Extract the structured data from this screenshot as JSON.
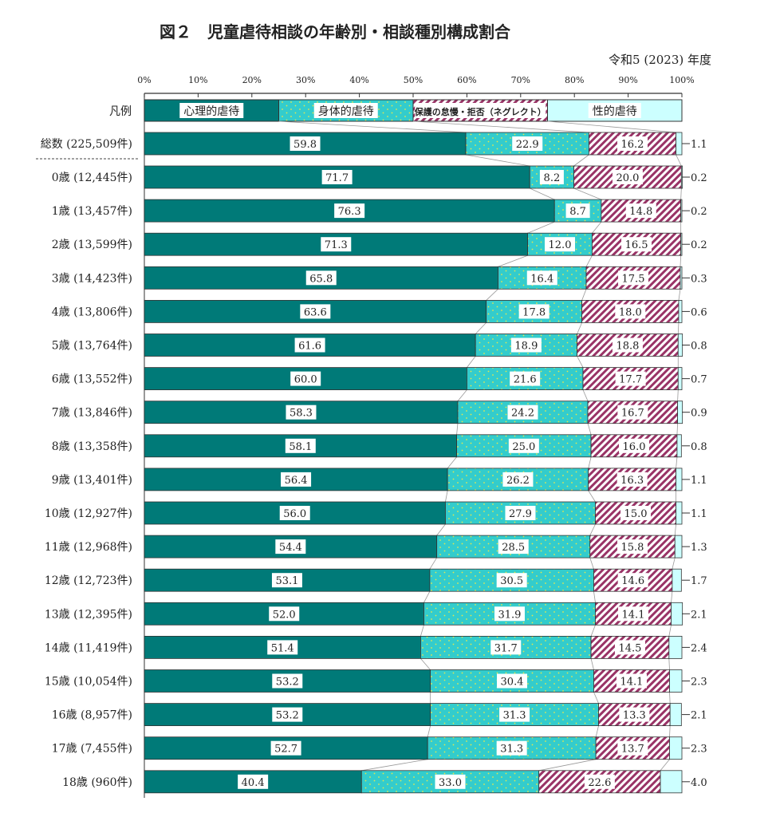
{
  "chart_data": {
    "type": "bar",
    "orientation": "horizontal-stacked-100",
    "title": "図２　児童虐待相談の年齢別・相談種別構成割合",
    "subtitle": "令和5 (2023) 年度",
    "legend_label": "凡例",
    "xlim": [
      0,
      100
    ],
    "x_ticks": [
      "0%",
      "10%",
      "20%",
      "30%",
      "40%",
      "50%",
      "60%",
      "70%",
      "80%",
      "90%",
      "100%"
    ],
    "series": [
      {
        "name": "心理的虐待",
        "color": "#007a78",
        "values": [
          59.8,
          71.7,
          76.3,
          71.3,
          65.8,
          63.6,
          61.6,
          60.0,
          58.3,
          58.1,
          56.4,
          56.0,
          54.4,
          53.1,
          52.0,
          51.4,
          53.2,
          53.2,
          52.7,
          40.4
        ]
      },
      {
        "name": "身体的虐待",
        "color": "#33cccc",
        "values": [
          22.9,
          8.2,
          8.7,
          12.0,
          16.4,
          17.8,
          18.9,
          21.6,
          24.2,
          25.0,
          26.2,
          27.9,
          28.5,
          30.5,
          31.9,
          31.7,
          30.4,
          31.3,
          31.3,
          33.0
        ]
      },
      {
        "name": "保護の怠慢・拒否（ネグレクト）",
        "color": "#993366",
        "values": [
          16.2,
          20.0,
          14.8,
          16.5,
          17.5,
          18.0,
          18.8,
          17.7,
          16.7,
          16.0,
          16.3,
          15.0,
          15.8,
          14.6,
          14.1,
          14.5,
          14.1,
          13.3,
          13.7,
          22.6
        ]
      },
      {
        "name": "性的虐待",
        "color": "#ccffff",
        "values": [
          1.1,
          0.2,
          0.2,
          0.2,
          0.3,
          0.6,
          0.8,
          0.7,
          0.9,
          0.8,
          1.1,
          1.1,
          1.3,
          1.7,
          2.1,
          2.4,
          2.3,
          2.1,
          2.3,
          4.0
        ]
      }
    ],
    "categories": [
      "総数 (225,509件)",
      "0歳 (12,445件)",
      "1歳 (13,457件)",
      "2歳 (13,599件)",
      "3歳 (14,423件)",
      "4歳 (13,806件)",
      "5歳 (13,764件)",
      "6歳 (13,552件)",
      "7歳 (13,846件)",
      "8歳 (13,358件)",
      "9歳 (13,401件)",
      "10歳 (12,927件)",
      "11歳 (12,968件)",
      "12歳 (12,723件)",
      "13歳 (12,395件)",
      "14歳 (11,419件)",
      "15歳 (10,054件)",
      "16歳 (8,957件)",
      "17歳 (7,455件)",
      "18歳 (960件)"
    ],
    "grid": false,
    "legend_position": "top"
  }
}
